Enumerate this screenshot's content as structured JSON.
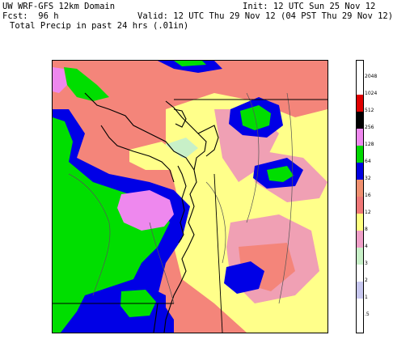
{
  "header": {
    "model_title": "UW WRF-GFS 12km Domain",
    "init_text": "Init: 12 UTC Sun 25 Nov 12",
    "fcst_text": "Fcst:  96 h",
    "valid_text": "Valid: 12 UTC Thu 29 Nov 12 (04 PST Thu 29 Nov 12)",
    "field_text": "Total Precip in past 24 hrs (.01in)"
  },
  "legend": {
    "bins": [
      {
        "label": "",
        "color": "#ffffff"
      },
      {
        "label": ".5",
        "color": "#ffffff"
      },
      {
        "label": "1",
        "color": "#c8c8f0"
      },
      {
        "label": "2",
        "color": "#ffffff"
      },
      {
        "label": "3",
        "color": "#c8f0c8"
      },
      {
        "label": "4",
        "color": "#f0a0c8"
      },
      {
        "label": "8",
        "color": "#ffff80"
      },
      {
        "label": "12",
        "color": "#f07878"
      },
      {
        "label": "16",
        "color": "#f09070"
      },
      {
        "label": "32",
        "color": "#0000e0"
      },
      {
        "label": "64",
        "color": "#00d800"
      },
      {
        "label": "128",
        "color": "#ee88ee"
      },
      {
        "label": "256",
        "color": "#000000"
      },
      {
        "label": "512",
        "color": "#e00000"
      },
      {
        "label": "1024",
        "color": "#ffffff"
      },
      {
        "label": "2048",
        "color": "#ffffff"
      }
    ]
  },
  "colors": {
    "pink_salmon": "#f4857a",
    "yellow": "#ffff8a",
    "light_pink": "#f0a0b4",
    "green": "#00de00",
    "blue": "#0000e6",
    "magenta": "#ee88ee",
    "light_green": "#c8f0c8",
    "coast_line": "#000000",
    "contour_line": "#555555"
  }
}
